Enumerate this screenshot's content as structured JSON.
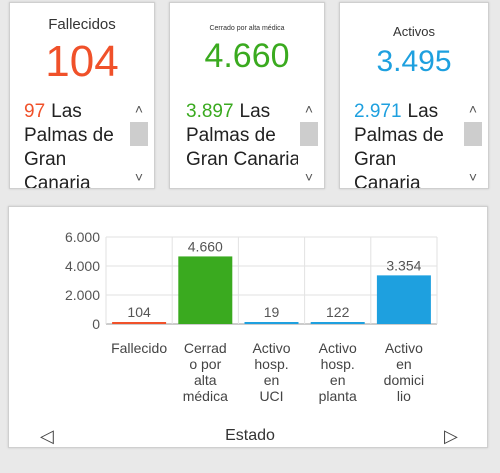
{
  "cards": [
    {
      "title": "Fallecidos",
      "value": "104",
      "color": "#f0512a",
      "list_num": "97",
      "list_text": "Las Palmas de Gran Canaria"
    },
    {
      "title": "Cerrado por alta médica",
      "value": "4.660",
      "color": "#3aaa1f",
      "list_num": "3.897",
      "list_text": "Las Palmas de Gran Canaria"
    },
    {
      "title": "Activos",
      "value": "3.495",
      "color": "#1ea0df",
      "list_num": "2.971",
      "list_text": "Las Palmas de Gran Canaria"
    }
  ],
  "scroll_icons": {
    "up": "chevron-up-icon",
    "down": "chevron-down-icon"
  },
  "chart_data": {
    "type": "bar",
    "xlabel": "Estado",
    "ylim": [
      0,
      6000
    ],
    "y_ticks": [
      "0",
      "2.000",
      "4.000",
      "6.000"
    ],
    "y_tick_values": [
      0,
      2000,
      4000,
      6000
    ],
    "categories": [
      [
        "Fallecido"
      ],
      [
        "Cerrad",
        "o por",
        "alta",
        "médica"
      ],
      [
        "Activo",
        "hosp.",
        "en",
        "UCI"
      ],
      [
        "Activo",
        "hosp.",
        "en",
        "planta"
      ],
      [
        "Activo",
        "en",
        "domici",
        "lio"
      ]
    ],
    "values": [
      104,
      4660,
      19,
      122,
      3354
    ],
    "value_labels": [
      "104",
      "4.660",
      "19",
      "122",
      "3.354"
    ],
    "colors": [
      "#f0512a",
      "#3aaa1f",
      "#1ea0df",
      "#1ea0df",
      "#1ea0df"
    ]
  },
  "nav": {
    "prev_icon": "triangle-left-icon",
    "next_icon": "triangle-right-icon",
    "prev": "◁",
    "next": "▷"
  }
}
